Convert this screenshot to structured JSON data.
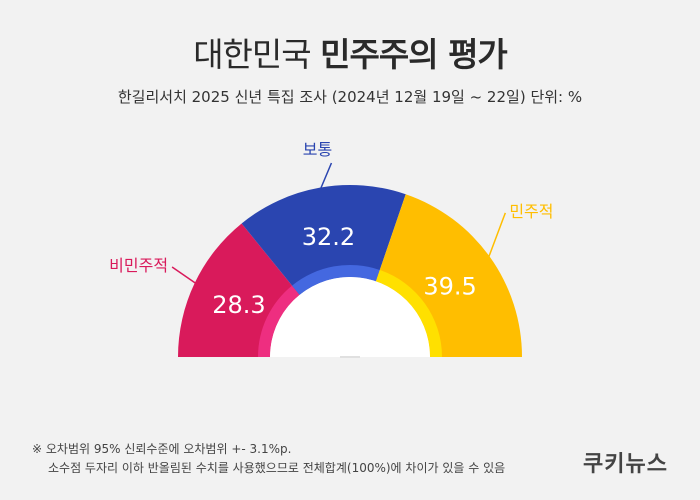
{
  "title_light": "대한민국",
  "title_bold": "민주주의 평가",
  "subtitle": "한길리서치 2025 신년 특집 조사 (2024년 12월 19일 ~ 22일) 단위: %",
  "colors": {
    "undemocratic": "#d91a5b",
    "normal": "#2a45b0",
    "democratic": "#ffbe00",
    "inner_undemocratic": "#ee2e80",
    "inner_normal": "#4468e0",
    "inner_democratic": "#ffe000",
    "background": "#f2f2f2"
  },
  "chart_data": {
    "type": "pie",
    "style": "semi-donut",
    "unit": "%",
    "series": [
      {
        "name": "비민주적",
        "value": 28.3,
        "color": "#d91a5b"
      },
      {
        "name": "보통",
        "value": 32.2,
        "color": "#2a45b0"
      },
      {
        "name": "민주적",
        "value": 39.5,
        "color": "#ffbe00"
      }
    ]
  },
  "footnote": {
    "line1": "※ 오차범위 95% 신뢰수준에 오차범위 +- 3.1%p.",
    "line2": "소수점 두자리 이하 반올림된 수치를 사용했으므로 전체합계(100%)에 차이가 있을 수 있음"
  },
  "brand": "쿠키뉴스"
}
